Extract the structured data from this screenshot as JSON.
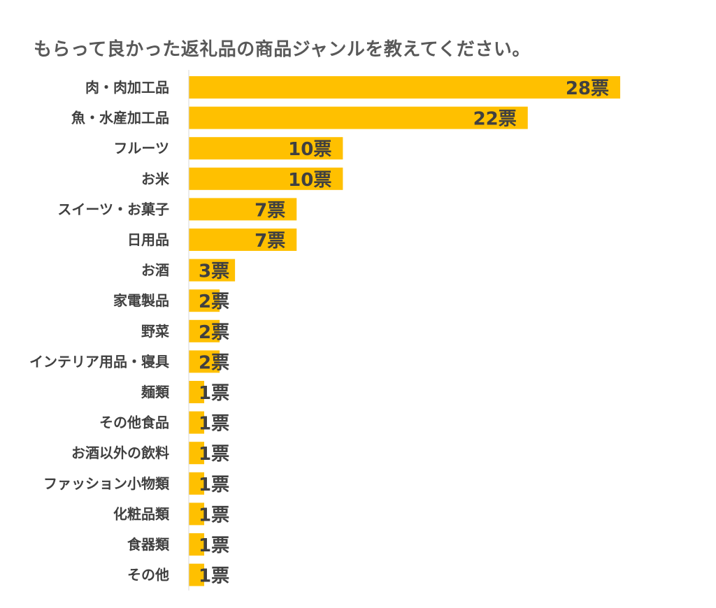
{
  "chart_data": {
    "type": "bar",
    "orientation": "horizontal",
    "title": "もらって良かった返礼品の商品ジャンルを教えてください。",
    "unit": "票",
    "categories": [
      "肉・肉加工品",
      "魚・水産加工品",
      "フルーツ",
      "お米",
      "スイーツ・お菓子",
      "日用品",
      "お酒",
      "家電製品",
      "野菜",
      "インテリア用品・寝具",
      "麺類",
      "その他食品",
      "お酒以外の飲料",
      "ファッション小物類",
      "化粧品類",
      "食器類",
      "その他"
    ],
    "values": [
      28,
      22,
      10,
      10,
      7,
      7,
      3,
      2,
      2,
      2,
      1,
      1,
      1,
      1,
      1,
      1,
      1
    ],
    "value_labels": [
      "28票",
      "22票",
      "10票",
      "10票",
      "7票",
      "7票",
      "3票",
      "2票",
      "2票",
      "2票",
      "1票",
      "1票",
      "1票",
      "1票",
      "1票",
      "1票",
      "1票"
    ],
    "xlim": [
      0,
      28
    ],
    "grid": false,
    "legend": "none",
    "bar_color": "#FFC000",
    "axis_color": "#D9D9D9",
    "text_color": "#404040"
  }
}
